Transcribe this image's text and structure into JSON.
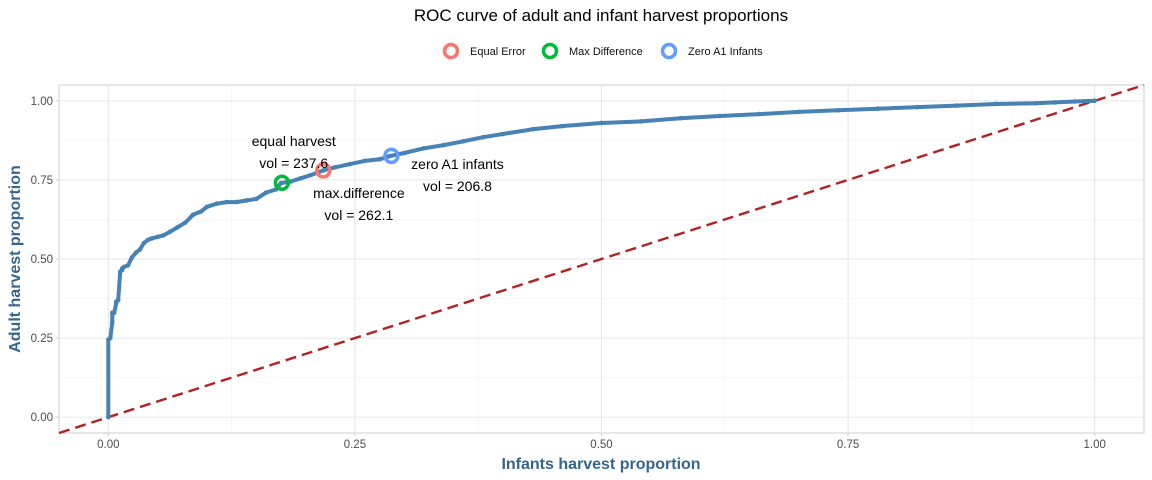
{
  "chart_data": {
    "type": "line",
    "title": "ROC curve of adult and infant harvest proportions",
    "xlabel": "Infants harvest proportion",
    "ylabel": "Adult harvest proportion",
    "xlim": [
      -0.05,
      1.05
    ],
    "ylim": [
      -0.05,
      1.05
    ],
    "x_ticks": [
      "0.00",
      "0.25",
      "0.50",
      "0.75",
      "1.00"
    ],
    "y_ticks": [
      "0.00",
      "0.25",
      "0.50",
      "0.75",
      "1.00"
    ],
    "grid": true,
    "legend_position": "top",
    "legend": [
      {
        "label": "Equal Error",
        "color": "#f8766d"
      },
      {
        "label": "Max Difference",
        "color": "#00ba38"
      },
      {
        "label": "Zero A1 Infants",
        "color": "#619cff"
      }
    ],
    "roc_color": "#4682b4",
    "diagonal_color": "#b22222",
    "roc_curve": {
      "x": [
        0.0,
        0.0,
        0.002,
        0.004,
        0.004,
        0.006,
        0.008,
        0.008,
        0.01,
        0.012,
        0.014,
        0.014,
        0.016,
        0.02,
        0.024,
        0.028,
        0.032,
        0.036,
        0.04,
        0.044,
        0.05,
        0.056,
        0.062,
        0.07,
        0.078,
        0.086,
        0.094,
        0.1,
        0.11,
        0.12,
        0.13,
        0.14,
        0.15,
        0.16,
        0.17,
        0.175,
        0.185,
        0.195,
        0.205,
        0.218,
        0.23,
        0.245,
        0.26,
        0.275,
        0.285,
        0.3,
        0.32,
        0.34,
        0.36,
        0.38,
        0.4,
        0.43,
        0.46,
        0.5,
        0.54,
        0.58,
        0.62,
        0.66,
        0.7,
        0.74,
        0.78,
        0.82,
        0.86,
        0.9,
        0.94,
        0.96,
        0.98,
        1.0
      ],
      "y": [
        0.0,
        0.245,
        0.25,
        0.3,
        0.33,
        0.33,
        0.36,
        0.365,
        0.37,
        0.46,
        0.465,
        0.47,
        0.475,
        0.48,
        0.505,
        0.52,
        0.53,
        0.55,
        0.56,
        0.565,
        0.57,
        0.575,
        0.585,
        0.6,
        0.615,
        0.64,
        0.65,
        0.665,
        0.675,
        0.68,
        0.68,
        0.685,
        0.69,
        0.71,
        0.72,
        0.74,
        0.745,
        0.755,
        0.765,
        0.78,
        0.79,
        0.8,
        0.81,
        0.815,
        0.825,
        0.835,
        0.85,
        0.86,
        0.872,
        0.885,
        0.895,
        0.91,
        0.92,
        0.93,
        0.935,
        0.945,
        0.952,
        0.958,
        0.965,
        0.97,
        0.975,
        0.98,
        0.985,
        0.99,
        0.992,
        0.995,
        0.998,
        1.0
      ]
    },
    "reference_line": {
      "from": [
        -0.05,
        -0.05
      ],
      "to": [
        1.05,
        1.05
      ],
      "style": "dashed"
    },
    "points": [
      {
        "name": "Equal Error",
        "x": 0.218,
        "y": 0.78,
        "color": "#f8766d"
      },
      {
        "name": "Max Difference",
        "x": 0.176,
        "y": 0.741,
        "color": "#00ba38"
      },
      {
        "name": "Zero A1 Infants",
        "x": 0.287,
        "y": 0.826,
        "color": "#619cff"
      }
    ],
    "annotations": [
      {
        "lines": [
          "equal harvest",
          "vol = 237.6"
        ],
        "x": 0.188,
        "y": 0.839
      },
      {
        "lines": [
          "max.difference",
          "vol = 262.1"
        ],
        "x": 0.254,
        "y": 0.674
      },
      {
        "lines": [
          "zero A1 infants",
          "vol = 206.8"
        ],
        "x": 0.354,
        "y": 0.765
      }
    ]
  }
}
